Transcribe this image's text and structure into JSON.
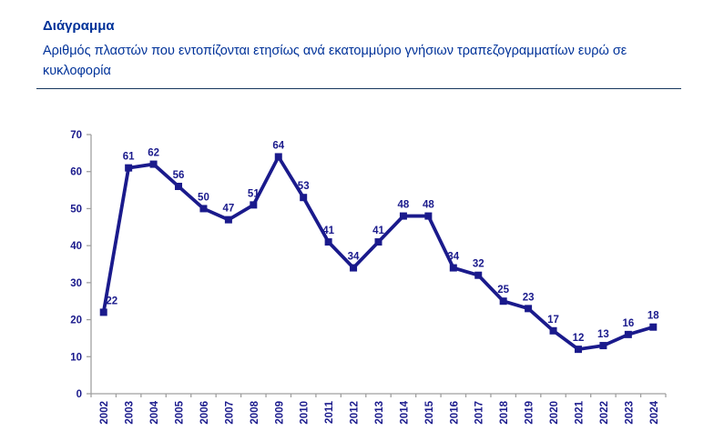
{
  "header": {
    "title": "Διάγραμμα",
    "subtitle": "Αριθμός πλαστών που εντοπίζονται ετησίως ανά εκατομμύριο γνήσιων τραπεζογραμματίων ευρώ σε κυκλοφορία"
  },
  "colors": {
    "header_text": "#003299",
    "divider": "#17375E",
    "line": "#1A1A8C",
    "marker": "#1A1A8C",
    "data_label": "#1A1A8C",
    "tick_label": "#1A1A8C",
    "axis": "#A0A0A0",
    "background": "#FFFFFF"
  },
  "chart_data": {
    "type": "line",
    "title": "",
    "xlabel": "",
    "ylabel": "",
    "categories": [
      "2002",
      "2003",
      "2004",
      "2005",
      "2006",
      "2007",
      "2008",
      "2009",
      "2010",
      "2011",
      "2012",
      "2013",
      "2014",
      "2015",
      "2016",
      "2017",
      "2018",
      "2019",
      "2020",
      "2021",
      "2022",
      "2023",
      "2024"
    ],
    "values": [
      22,
      61,
      62,
      56,
      50,
      47,
      51,
      64,
      53,
      41,
      34,
      41,
      48,
      48,
      34,
      32,
      25,
      23,
      17,
      12,
      13,
      16,
      18
    ],
    "ylim": [
      0,
      70
    ],
    "yticks": [
      0,
      10,
      20,
      30,
      40,
      50,
      60,
      70
    ],
    "grid": false,
    "legend": "none",
    "marker": "square",
    "data_labels": true,
    "x_label_rotation": -90
  }
}
